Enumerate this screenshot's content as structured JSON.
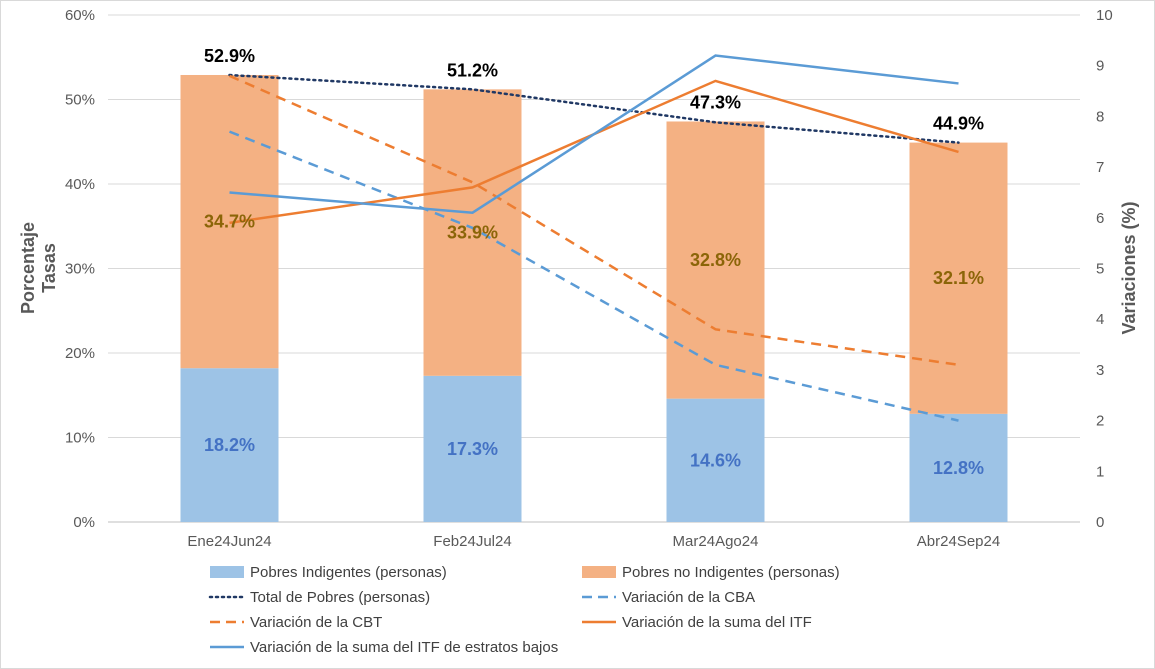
{
  "chart_data": {
    "type": "bar",
    "stacked": true,
    "categories": [
      "Ene24Jun24",
      "Feb24Jul24",
      "Mar24Ago24",
      "Abr24Sep24"
    ],
    "ylabel_lines": [
      "Porcentaje",
      "Tasas"
    ],
    "y2label": "Variaciones (%)",
    "ylim": [
      0,
      60
    ],
    "y_ticks": [
      "0%",
      "10%",
      "20%",
      "30%",
      "40%",
      "50%",
      "60%"
    ],
    "y2lim": [
      0,
      10
    ],
    "y2_ticks": [
      "0",
      "1",
      "2",
      "3",
      "4",
      "5",
      "6",
      "7",
      "8",
      "9",
      "10"
    ],
    "grid": "horizontal",
    "legend_position": "bottom",
    "bar_series": [
      {
        "name": "Pobres Indigentes (personas)",
        "color": "#9DC3E6",
        "label_color": "#4472C4",
        "values": [
          18.2,
          17.3,
          14.6,
          12.8
        ],
        "labels": [
          "18.2%",
          "17.3%",
          "14.6%",
          "12.8%"
        ]
      },
      {
        "name": "Pobres no Indigentes (personas)",
        "color": "#F4B183",
        "label_color": "#8B6508",
        "values": [
          34.7,
          33.9,
          32.8,
          32.1
        ],
        "labels": [
          "34.7%",
          "33.9%",
          "32.8%",
          "32.1%"
        ]
      }
    ],
    "total_labels": [
      "52.9%",
      "51.2%",
      "47.3%",
      "44.9%"
    ],
    "line_series": [
      {
        "name": "Total de Pobres (personas)",
        "color": "#203864",
        "dash": "dotted",
        "axis": "left",
        "values": [
          52.9,
          51.2,
          47.3,
          44.9
        ]
      },
      {
        "name": "Variación de la CBA",
        "color": "#5B9BD5",
        "dash": "dashed",
        "axis": "right",
        "values": [
          7.7,
          5.8,
          3.1,
          2.0
        ]
      },
      {
        "name": "Variación de la CBT",
        "color": "#ED7D31",
        "dash": "dashed",
        "axis": "right",
        "values": [
          8.8,
          6.7,
          3.8,
          3.1
        ]
      },
      {
        "name": "Variación de la suma del ITF",
        "color": "#ED7D31",
        "dash": "solid",
        "axis": "right",
        "values": [
          5.9,
          6.6,
          8.7,
          7.3
        ]
      },
      {
        "name": "Variación de la suma del ITF de estratos bajos",
        "color": "#5B9BD5",
        "dash": "solid",
        "axis": "right",
        "values": [
          6.5,
          6.1,
          9.2,
          8.65
        ]
      }
    ]
  }
}
